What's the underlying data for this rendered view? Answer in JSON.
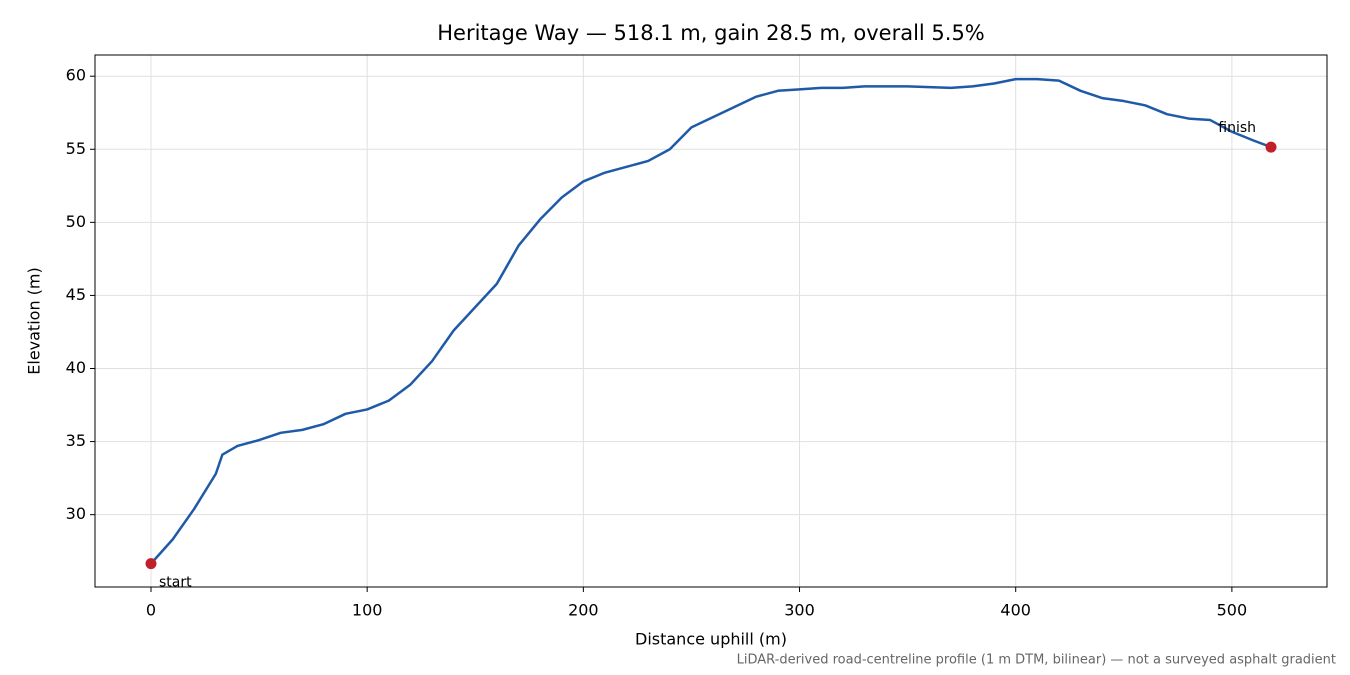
{
  "chart_data": {
    "type": "line",
    "title": "Heritage Way — 518.1 m, gain 28.5 m, overall 5.5%",
    "xlabel": "Distance uphill (m)",
    "ylabel": "Elevation (m)",
    "footnote": "LiDAR-derived road-centreline profile (1 m DTM, bilinear) — not a surveyed asphalt gradient",
    "x": [
      0,
      10,
      20,
      30,
      33,
      40,
      50,
      60,
      70,
      80,
      90,
      100,
      110,
      120,
      130,
      140,
      150,
      160,
      170,
      180,
      190,
      200,
      210,
      220,
      230,
      240,
      250,
      260,
      270,
      280,
      290,
      300,
      310,
      320,
      330,
      340,
      350,
      360,
      370,
      380,
      390,
      400,
      410,
      420,
      430,
      440,
      450,
      460,
      470,
      480,
      490,
      500,
      510,
      518.1
    ],
    "series": [
      {
        "name": "Elevation",
        "color": "#1f5aa8",
        "values": [
          26.65,
          28.3,
          30.4,
          32.8,
          34.1,
          34.7,
          35.1,
          35.6,
          35.8,
          36.2,
          36.9,
          37.2,
          37.8,
          38.9,
          40.5,
          42.6,
          44.2,
          45.8,
          48.4,
          50.2,
          51.7,
          52.8,
          53.4,
          53.8,
          54.2,
          55.0,
          56.5,
          57.2,
          57.9,
          58.6,
          59.0,
          59.1,
          59.2,
          59.2,
          59.3,
          59.3,
          59.3,
          59.25,
          59.2,
          59.3,
          59.5,
          59.8,
          59.8,
          59.7,
          59.0,
          58.5,
          58.3,
          58.0,
          57.4,
          57.1,
          57.0,
          56.2,
          55.6,
          55.15
        ]
      }
    ],
    "markers": [
      {
        "label": "start",
        "x": 0,
        "y": 26.65,
        "color": "#c0202a"
      },
      {
        "label": "finish",
        "x": 518.1,
        "y": 55.15,
        "color": "#c0202a"
      }
    ],
    "xlim": [
      -25.9,
      544.0
    ],
    "ylim": [
      25.05,
      61.45
    ],
    "xticks": [
      0,
      100,
      200,
      300,
      400,
      500
    ],
    "yticks": [
      30,
      35,
      40,
      45,
      50,
      55,
      60
    ],
    "grid": true
  }
}
